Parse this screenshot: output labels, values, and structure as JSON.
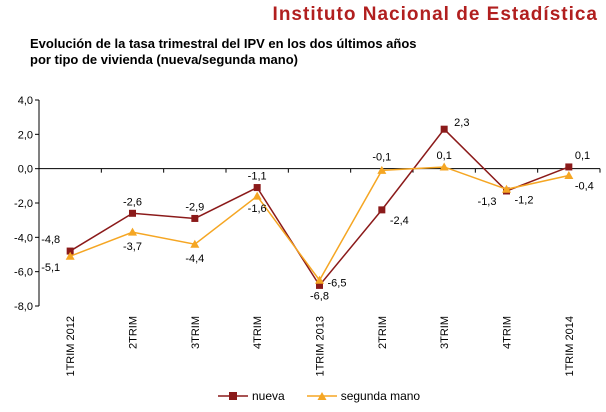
{
  "header": {
    "organization": "Instituto Nacional de Estadística"
  },
  "chart_data": {
    "type": "line",
    "title_lines": [
      "Evolución de la tasa trimestral del IPV en los dos últimos años",
      "por tipo de vivienda (nueva/segunda mano)"
    ],
    "categories": [
      "1TRIM 2012",
      "2TRIM",
      "3TRIM",
      "4TRIM",
      "1TRIM 2013",
      "2TRIM",
      "3TRIM",
      "4TRIM",
      "1TRIM 2014"
    ],
    "ylim": [
      -8.0,
      4.0
    ],
    "yticks": [
      "4,0",
      "2,0",
      "0,0",
      "-2,0",
      "-4,0",
      "-6,0",
      "-8,0"
    ],
    "ytick_values": [
      4,
      2,
      0,
      -2,
      -4,
      -6,
      -8
    ],
    "series": [
      {
        "name": "nueva",
        "color": "#8b1a1a",
        "marker": "square",
        "values": [
          -4.8,
          -2.6,
          -2.9,
          -1.1,
          -6.8,
          -2.4,
          2.3,
          -1.3,
          0.1
        ],
        "labels": [
          "-4,8",
          "-2,6",
          "-2,9",
          "-1,1",
          "-6,8",
          "-2,4",
          "2,3",
          "-1,3",
          "0,1"
        ]
      },
      {
        "name": "segunda mano",
        "color": "#f5a623",
        "marker": "triangle",
        "values": [
          -5.1,
          -3.7,
          -4.4,
          -1.6,
          -6.5,
          -0.1,
          0.1,
          -1.2,
          -0.4
        ],
        "labels": [
          "-5,1",
          "-3,7",
          "-4,4",
          "-1,6",
          "-6,5",
          "-0,1",
          "0,1",
          "-1,2",
          "-0,4"
        ]
      }
    ],
    "legend_position": "bottom"
  }
}
